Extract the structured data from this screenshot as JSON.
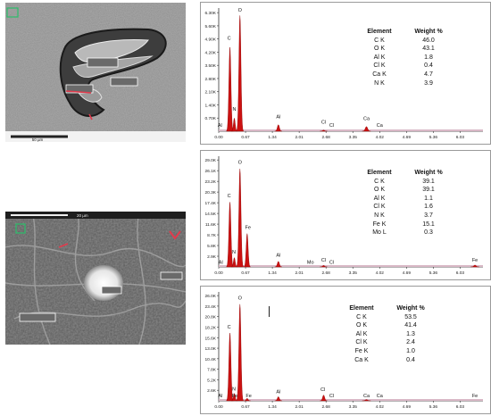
{
  "sem_images": [
    {
      "scale_label": "50 µm",
      "label_boxes": 3
    },
    {
      "scale_label": "20 µm",
      "label_boxes": 3
    }
  ],
  "colors": {
    "spectrum": "#cc1111",
    "baseline": "#d9b8c6",
    "axis": "#333333"
  },
  "chart_data": [
    {
      "type": "area",
      "x_ticks": [
        "0.00",
        "0.67",
        "1.34",
        "2.01",
        "2.68",
        "3.35",
        "4.02",
        "4.69",
        "5.36",
        "6.03"
      ],
      "y_ticks": [
        "0.70K",
        "1.40K",
        "2.10K",
        "2.80K",
        "3.50K",
        "4.20K",
        "4.90K",
        "5.60K",
        "6.30K"
      ],
      "xlim": [
        0,
        6.6
      ],
      "ylim": [
        0,
        6.6
      ],
      "peaks": [
        {
          "x": 0.28,
          "y": 4.5,
          "w": 0.03
        },
        {
          "x": 0.39,
          "y": 0.7,
          "w": 0.025
        },
        {
          "x": 0.53,
          "y": 6.2,
          "w": 0.03
        },
        {
          "x": 1.49,
          "y": 0.35,
          "w": 0.03
        },
        {
          "x": 2.62,
          "y": 0.06,
          "w": 0.03
        },
        {
          "x": 3.69,
          "y": 0.25,
          "w": 0.035
        }
      ],
      "peak_labels": [
        {
          "text": "C",
          "x": 0.26,
          "y": 4.9
        },
        {
          "text": "O",
          "x": 0.53,
          "y": 6.4
        },
        {
          "text": "N",
          "x": 0.39,
          "y": 1.1
        },
        {
          "text": "Al",
          "x": 1.49,
          "y": 0.7
        },
        {
          "text": "Cl",
          "x": 2.62,
          "y": 0.4
        },
        {
          "text": "Cl",
          "x": 2.82,
          "y": 0.25
        },
        {
          "text": "Ca",
          "x": 3.69,
          "y": 0.6
        },
        {
          "text": "Ca",
          "x": 4.02,
          "y": 0.25
        },
        {
          "text": "Al",
          "x": 0.03,
          "y": 0.25
        }
      ],
      "table": {
        "header": [
          "Element",
          "Weight %"
        ],
        "rows": [
          [
            "C K",
            "46.0"
          ],
          [
            "O K",
            "43.1"
          ],
          [
            "Al K",
            "1.8"
          ],
          [
            "Cl K",
            "0.4"
          ],
          [
            "Ca K",
            "4.7"
          ],
          [
            "N K",
            "3.9"
          ]
        ]
      }
    },
    {
      "type": "area",
      "x_ticks": [
        "0.00",
        "0.67",
        "1.34",
        "2.01",
        "2.68",
        "3.35",
        "4.02",
        "4.69",
        "5.36",
        "6.03"
      ],
      "y_ticks": [
        "2.9K",
        "5.8K",
        "8.7K",
        "11.6K",
        "14.5K",
        "17.4K",
        "20.3K",
        "23.2K",
        "26.1K",
        "29.0K"
      ],
      "xlim": [
        0,
        6.6
      ],
      "ylim": [
        0,
        29.9
      ],
      "peaks": [
        {
          "x": 0.28,
          "y": 17.5,
          "w": 0.03
        },
        {
          "x": 0.39,
          "y": 2.5,
          "w": 0.025
        },
        {
          "x": 0.53,
          "y": 26.5,
          "w": 0.03
        },
        {
          "x": 0.71,
          "y": 9.0,
          "w": 0.028
        },
        {
          "x": 1.49,
          "y": 1.5,
          "w": 0.03
        },
        {
          "x": 2.62,
          "y": 0.4,
          "w": 0.03
        },
        {
          "x": 6.4,
          "y": 0.5,
          "w": 0.035
        }
      ],
      "peak_labels": [
        {
          "text": "C",
          "x": 0.26,
          "y": 18.8
        },
        {
          "text": "O",
          "x": 0.53,
          "y": 27.8
        },
        {
          "text": "N",
          "x": 0.38,
          "y": 3.6
        },
        {
          "text": "Fe",
          "x": 0.73,
          "y": 10.3
        },
        {
          "text": "Al",
          "x": 1.49,
          "y": 2.8
        },
        {
          "text": "Mo",
          "x": 2.29,
          "y": 0.9
        },
        {
          "text": "Cl",
          "x": 2.62,
          "y": 1.4
        },
        {
          "text": "Cl",
          "x": 2.82,
          "y": 0.9
        },
        {
          "text": "Fe",
          "x": 6.4,
          "y": 1.5
        },
        {
          "text": "Al",
          "x": 0.05,
          "y": 0.9
        }
      ],
      "table": {
        "header": [
          "Element",
          "Weight %"
        ],
        "rows": [
          [
            "C K",
            "39.1"
          ],
          [
            "O K",
            "39.1"
          ],
          [
            "Al K",
            "1.1"
          ],
          [
            "Cl K",
            "1.6"
          ],
          [
            "N K",
            "3.7"
          ],
          [
            "Fe K",
            "15.1"
          ],
          [
            "Mo L",
            "0.3"
          ]
        ]
      }
    },
    {
      "type": "area",
      "x_ticks": [
        "0.00",
        "0.67",
        "1.34",
        "2.01",
        "2.68",
        "3.35",
        "4.02",
        "4.69",
        "5.36",
        "6.03"
      ],
      "y_ticks": [
        "2.6K",
        "5.2K",
        "7.8K",
        "10.4K",
        "13.0K",
        "15.6K",
        "18.2K",
        "20.8K",
        "23.4K",
        "26.0K"
      ],
      "xlim": [
        0,
        6.6
      ],
      "ylim": [
        0,
        26.5
      ],
      "peaks": [
        {
          "x": 0.28,
          "y": 16.5,
          "w": 0.03
        },
        {
          "x": 0.39,
          "y": 1.8,
          "w": 0.025
        },
        {
          "x": 0.53,
          "y": 23.5,
          "w": 0.03
        },
        {
          "x": 0.71,
          "y": 0.6,
          "w": 0.028
        },
        {
          "x": 1.49,
          "y": 1.0,
          "w": 0.03
        },
        {
          "x": 2.62,
          "y": 1.4,
          "w": 0.03
        },
        {
          "x": 3.69,
          "y": 0.3,
          "w": 0.035
        }
      ],
      "peak_labels": [
        {
          "text": "C",
          "x": 0.26,
          "y": 17.6
        },
        {
          "text": "O",
          "x": 0.53,
          "y": 24.6
        },
        {
          "text": "N",
          "x": 0.38,
          "y": 2.5
        },
        {
          "text": "Fe",
          "x": 0.4,
          "y": 0.9
        },
        {
          "text": "Fe",
          "x": 0.75,
          "y": 0.9
        },
        {
          "text": "Al",
          "x": 1.49,
          "y": 1.9
        },
        {
          "text": "Cl",
          "x": 2.6,
          "y": 2.4
        },
        {
          "text": "Cl",
          "x": 2.82,
          "y": 0.9
        },
        {
          "text": "Ca",
          "x": 3.69,
          "y": 0.9
        },
        {
          "text": "Ca",
          "x": 4.02,
          "y": 0.9
        },
        {
          "text": "Fe",
          "x": 6.4,
          "y": 0.9
        },
        {
          "text": "Al",
          "x": 0.04,
          "y": 0.9
        }
      ],
      "table": {
        "header": [
          "Element",
          "Weight %"
        ],
        "rows": [
          [
            "C K",
            "53.5"
          ],
          [
            "O K",
            "41.4"
          ],
          [
            "Al K",
            "1.3"
          ],
          [
            "Cl K",
            "2.4"
          ],
          [
            "Fe K",
            "1.0"
          ],
          [
            "Ca K",
            "0.4"
          ]
        ]
      }
    }
  ]
}
